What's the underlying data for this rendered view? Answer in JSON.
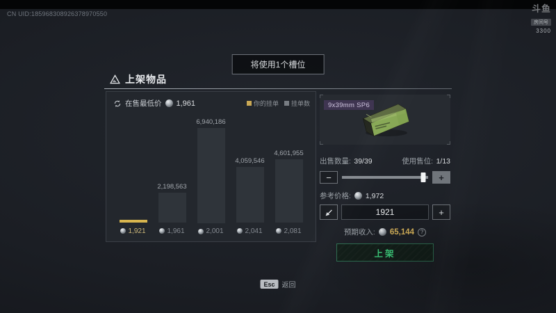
{
  "watermark": {
    "uid": "CN UID:185968308926378970550",
    "logo": "斗鱼",
    "room_label": "房间号",
    "room_number": "3300"
  },
  "header": {
    "slot_notice": "将使用1个槽位",
    "panel_title": "上架物品"
  },
  "market_chart": {
    "lowest_label": "在售最低价",
    "lowest_value": "1,961",
    "legend": [
      {
        "label": "你的挂单",
        "color": "#c9a855"
      },
      {
        "label": "挂单数",
        "color": "#787d83"
      }
    ]
  },
  "chart_data": {
    "type": "bar",
    "title": "",
    "xlabel": "",
    "ylabel": "",
    "categories": [
      "1,921",
      "1,961",
      "2,001",
      "2,041",
      "2,081"
    ],
    "values": [
      null,
      2198563,
      6940186,
      4059546,
      4601955
    ],
    "value_labels": [
      "",
      "2,198,563",
      "6,940,186",
      "4,059,546",
      "4,601,955"
    ],
    "highlight_index": 0,
    "highlight_color": "#d8b54e",
    "bar_color": "#2f343a",
    "legend": [
      "你的挂单",
      "挂单数"
    ],
    "legend_position": "top-right",
    "grid": false
  },
  "item": {
    "name": "9x39mm SP6"
  },
  "sale": {
    "quantity_label": "出售数量:",
    "quantity_value": "39/39",
    "slots_label": "使用售位:",
    "slots_value": "1/13",
    "slider_percent": 94,
    "minus_label": "−",
    "plus_label": "+"
  },
  "price": {
    "ref_label": "参考价格:",
    "ref_value": "1,972",
    "input_value": "1921",
    "plus_label": "+"
  },
  "income": {
    "label": "预期收入:",
    "value": "65,144",
    "help": "?"
  },
  "actions": {
    "list_label": "上架"
  },
  "footer": {
    "esc_key": "Esc",
    "back_label": "返回"
  },
  "colors": {
    "accent_gold": "#d8b54e",
    "accent_green": "#3fd27f",
    "bar_gray": "#2f343a",
    "panel_bg": "#23272d"
  }
}
